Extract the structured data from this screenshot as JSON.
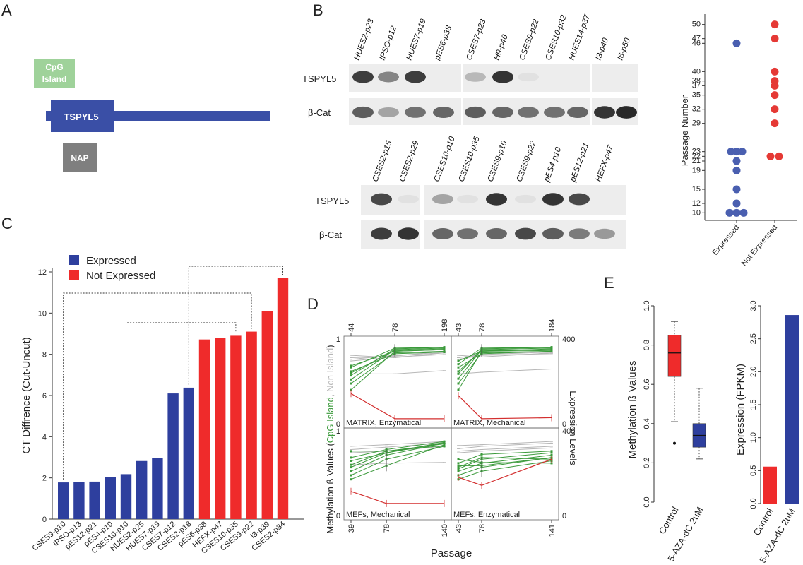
{
  "figure": {
    "panel_labels": [
      "A",
      "B",
      "C",
      "D",
      "E"
    ]
  },
  "panel_a": {
    "cpg_label_line1": "CpG",
    "cpg_label_line2": "Island",
    "gene_label": "TSPYL5",
    "nap_label": "NAP",
    "colors": {
      "cpg": "#9fd29a",
      "gene": "#3a4fa6",
      "nap": "#7f7f7f"
    }
  },
  "panel_b": {
    "row_labels": [
      "TSPYL5",
      "β-Cat"
    ],
    "blot1_lanes": [
      "HUES2-p23",
      "IPSO-p12",
      "HUES7-p19",
      "pES6-p38",
      "CSES7-p23",
      "H9-p46",
      "CSES9-p22",
      "CSES10-p32",
      "HUES14-p37",
      "I3-p40",
      "I6-p50"
    ],
    "blot2_lanes": [
      "CSES2-p15",
      "CSES2-p29",
      "CSES10-p10",
      "CSES10-p35",
      "CSES9-p10",
      "CSES9-p22",
      "pES4-p10",
      "pES12-p21",
      "HEFX-p47"
    ],
    "blot1_tspyl5_intensity": [
      0.85,
      0.5,
      0.85,
      0.0,
      0.25,
      0.9,
      0.05,
      0.0,
      0.0,
      0.0,
      0.0
    ],
    "blot1_bcat_intensity": [
      0.7,
      0.35,
      0.6,
      0.65,
      0.7,
      0.65,
      0.6,
      0.6,
      0.65,
      0.9,
      0.95
    ],
    "blot2_tspyl5_intensity": [
      0.8,
      0.05,
      0.35,
      0.05,
      0.9,
      0.05,
      0.9,
      0.8,
      0.0
    ],
    "blot2_bcat_intensity": [
      0.85,
      0.9,
      0.65,
      0.6,
      0.65,
      0.8,
      0.7,
      0.55,
      0.4
    ],
    "scatter": {
      "type": "scatter",
      "ylabel": "Passage Number",
      "categories": [
        "Expressed",
        "Not Expressed"
      ],
      "yticks": [
        10,
        12,
        15,
        19,
        21,
        22,
        23,
        29,
        32,
        35,
        37,
        38,
        40,
        46,
        47,
        50
      ],
      "expressed_points": [
        [
          -0.25,
          10
        ],
        [
          0,
          10
        ],
        [
          0.25,
          10
        ],
        [
          0,
          12
        ],
        [
          0,
          15
        ],
        [
          0,
          19
        ],
        [
          0,
          21
        ],
        [
          -0.2,
          23
        ],
        [
          0,
          23
        ],
        [
          0.2,
          23
        ],
        [
          0,
          46
        ]
      ],
      "not_expressed_points": [
        [
          -0.15,
          22
        ],
        [
          0.15,
          22
        ],
        [
          0,
          29
        ],
        [
          0,
          32
        ],
        [
          0,
          35
        ],
        [
          0,
          37
        ],
        [
          0,
          38
        ],
        [
          0,
          40
        ],
        [
          0,
          47
        ],
        [
          0,
          50
        ]
      ],
      "colors": {
        "expressed": "#4a5fb0",
        "not_expressed": "#e53935"
      }
    }
  },
  "chart_data": [
    {
      "type": "bar",
      "panel": "C",
      "ylabel": "CT Diffrence (Cut-Uncut)",
      "ylim": [
        0,
        12
      ],
      "yticks": [
        0,
        2,
        4,
        6,
        8,
        10,
        12
      ],
      "legend_position": "top-left",
      "legend": [
        {
          "name": "Expressed",
          "color": "#2e3f9e"
        },
        {
          "name": "Not Expressed",
          "color": "#ef2b2b"
        }
      ],
      "categories": [
        "CSES9-p10",
        "IPSO-p13",
        "pES12-p21",
        "pES4-p10",
        "CSES10-p10",
        "HUES2-p25",
        "HUES7-p19",
        "CSES7-p12",
        "CSES2-p18",
        "pES6-p38",
        "HEFX-p47",
        "CSES10-p35",
        "CSES9-p22",
        "I3-p39",
        "CSES2-p34"
      ],
      "values": [
        1.78,
        1.8,
        1.82,
        2.05,
        2.18,
        2.82,
        2.95,
        6.1,
        6.38,
        8.72,
        8.8,
        8.9,
        9.1,
        10.1,
        11.7
      ],
      "groups": [
        "Expressed",
        "Expressed",
        "Expressed",
        "Expressed",
        "Expressed",
        "Expressed",
        "Expressed",
        "Expressed",
        "Expressed",
        "Not Expressed",
        "Not Expressed",
        "Not Expressed",
        "Not Expressed",
        "Not Expressed",
        "Not Expressed"
      ],
      "brackets": [
        [
          0,
          12
        ],
        [
          4,
          11
        ],
        [
          8,
          14
        ]
      ]
    },
    {
      "type": "line",
      "panel": "D",
      "ylabel_parts": [
        "Methylation ß Values (",
        "CpG Island",
        ", ",
        "Non Island",
        ")"
      ],
      "y2label": "Expression Levels",
      "xlabel": "Passage",
      "left_ticks": [
        "0",
        "1"
      ],
      "right_ticks": [
        "0",
        "400"
      ],
      "subplots": [
        {
          "name": "MATRIX, Enzymatical",
          "top_ticks": [
            "44",
            "78",
            "198"
          ],
          "bottom_ticks": [],
          "xpos": [
            0,
            0.47,
            1
          ],
          "green_start": [
            0.42,
            0.5,
            0.55,
            0.6,
            0.63,
            0.65,
            0.7,
            0.72
          ],
          "green_mid": [
            0.9,
            0.88,
            0.92,
            0.93,
            0.91,
            0.87,
            0.94,
            0.9
          ],
          "green_end": [
            0.92,
            0.9,
            0.94,
            0.95,
            0.93,
            0.89,
            0.95,
            0.92
          ],
          "gray": [
            [
              0.78,
              0.83,
              0.86
            ],
            [
              0.8,
              0.85,
              0.88
            ],
            [
              0.85,
              0.82,
              0.88
            ],
            [
              0.82,
              0.84,
              0.9
            ],
            [
              0.62,
              0.62,
              0.66
            ]
          ],
          "red": [
            150,
            25,
            25
          ]
        },
        {
          "name": "MATRIX, Mechanical",
          "top_ticks": [
            "43",
            "78",
            "184"
          ],
          "bottom_ticks": [],
          "xpos": [
            0,
            0.25,
            1
          ],
          "green_start": [
            0.42,
            0.5,
            0.56,
            0.62,
            0.65,
            0.7,
            0.74,
            0.78
          ],
          "green_mid": [
            0.9,
            0.88,
            0.92,
            0.93,
            0.91,
            0.87,
            0.94,
            0.9
          ],
          "green_end": [
            0.93,
            0.9,
            0.94,
            0.95,
            0.92,
            0.9,
            0.95,
            0.91
          ],
          "gray": [
            [
              0.8,
              0.85,
              0.87
            ],
            [
              0.82,
              0.86,
              0.89
            ],
            [
              0.85,
              0.83,
              0.88
            ],
            [
              0.62,
              0.64,
              0.68
            ]
          ],
          "red": [
            140,
            25,
            30
          ]
        },
        {
          "name": "MEFs, Mechanical",
          "top_ticks": [],
          "bottom_ticks": [
            "39",
            "78",
            "140"
          ],
          "xpos": [
            0,
            0.38,
            1
          ],
          "green_start": [
            0.45,
            0.5,
            0.55,
            0.6,
            0.63,
            0.68,
            0.72,
            0.8
          ],
          "green_mid": [
            0.62,
            0.7,
            0.75,
            0.78,
            0.8,
            0.78,
            0.82,
            0.8
          ],
          "green_end": [
            0.88,
            0.86,
            0.9,
            0.91,
            0.87,
            0.9,
            0.92,
            0.89
          ],
          "gray": [
            [
              0.82,
              0.85,
              0.9
            ],
            [
              0.86,
              0.88,
              0.92
            ],
            [
              0.78,
              0.8,
              0.86
            ],
            [
              0.63,
              0.65,
              0.66
            ]
          ],
          "red": [
            120,
            60,
            60
          ]
        },
        {
          "name": "MEFs, Enzymatical",
          "top_ticks": [],
          "bottom_ticks": [
            "43",
            "78",
            "141"
          ],
          "xpos": [
            0,
            0.25,
            1
          ],
          "green_start": [
            0.45,
            0.5,
            0.55,
            0.58,
            0.6,
            0.62,
            0.65,
            0.7
          ],
          "green_mid": [
            0.55,
            0.6,
            0.65,
            0.7,
            0.72,
            0.62,
            0.76,
            0.66
          ],
          "green_end": [
            0.68,
            0.72,
            0.75,
            0.78,
            0.7,
            0.72,
            0.8,
            0.65
          ],
          "gray": [
            [
              0.83,
              0.86,
              0.9
            ],
            [
              0.87,
              0.88,
              0.92
            ],
            [
              0.8,
              0.82,
              0.86
            ],
            [
              0.78,
              0.8,
              0.84
            ]
          ],
          "red": [
            190,
            150,
            280
          ]
        }
      ],
      "colors": {
        "green": "#3b9a3b",
        "gray": "#b7b7b7",
        "red": "#d32f2f"
      }
    },
    {
      "type": "box",
      "panel": "E",
      "ylabel": "Methylation ß Values",
      "ylim": [
        0,
        1
      ],
      "yticks": [
        "0.0",
        "0.2",
        "0.4",
        "0.6",
        "0.8",
        "1.0"
      ],
      "categories": [
        "Control",
        "5-AZA-dC 2uM"
      ],
      "boxes": [
        {
          "q1": 0.64,
          "median": 0.76,
          "q3": 0.85,
          "whisker_low": 0.41,
          "whisker_high": 0.92,
          "outliers": [
            0.3
          ],
          "color": "#ef2b2b"
        },
        {
          "q1": 0.28,
          "median": 0.34,
          "q3": 0.4,
          "whisker_low": 0.22,
          "whisker_high": 0.58,
          "outliers": [],
          "color": "#2e3f9e"
        }
      ]
    },
    {
      "type": "bar",
      "panel": "E",
      "ylabel": "Expression (FPKM)",
      "ylim": [
        0,
        3
      ],
      "yticks": [
        "0.0",
        "0.5",
        "1.0",
        "1.5",
        "2.0",
        "2.5",
        "3.0"
      ],
      "categories": [
        "Control",
        "5-AZA-dC 2uM"
      ],
      "values": [
        0.56,
        2.86
      ],
      "colors": [
        "#ef2b2b",
        "#2e3f9e"
      ]
    }
  ]
}
